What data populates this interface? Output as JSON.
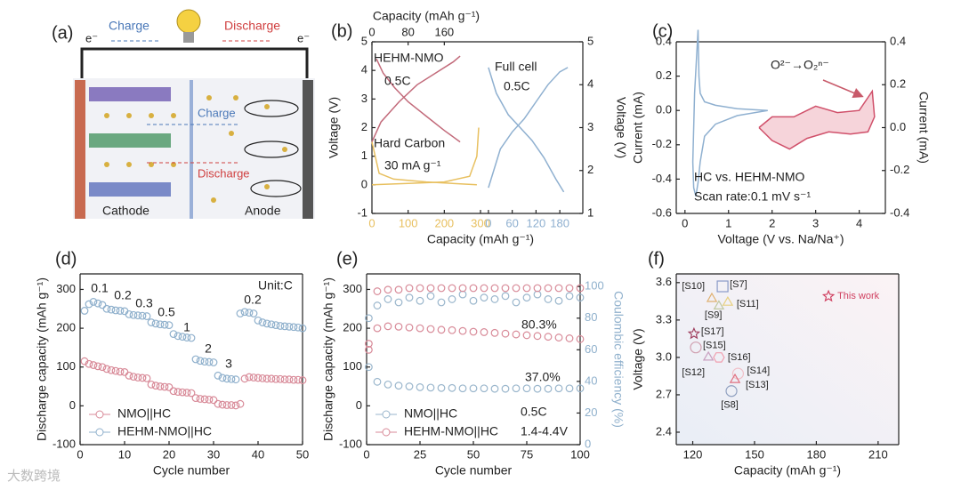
{
  "panel_a": {
    "label": "(a)",
    "electron_left": "e⁻",
    "electron_right": "e⁻",
    "charge_top": "Charge",
    "discharge_top": "Discharge",
    "charge_inner": "Charge",
    "discharge_inner": "Discharge",
    "cathode": "Cathode",
    "anode": "Anode"
  },
  "watermark": "大数跨境",
  "chart_data": [
    {
      "type": "line",
      "label": "(b)",
      "xlabel": "Capacity (mAh g⁻¹)",
      "x2label": "Capacity (mAh g⁻¹)",
      "ylabel": "Voltage (V)",
      "xlim": [
        0,
        300
      ],
      "xticks": [
        0,
        100,
        200,
        300
      ],
      "xcolor": "#e8c060",
      "x2lim": [
        0,
        240
      ],
      "x2ticks": [
        0,
        80,
        160
      ],
      "ylim": [
        -1,
        5
      ],
      "yticks": [
        -1,
        0,
        1,
        2,
        3,
        4,
        5
      ],
      "annotations": [
        "HEHM-NMO",
        "0.5C",
        "Hard Carbon",
        "30 mA g⁻¹"
      ],
      "series": [
        {
          "color": "#c26a7a",
          "axis": "x2",
          "x": [
            0,
            20,
            60,
            100,
            140,
            180,
            195
          ],
          "values": [
            1.5,
            2.2,
            2.9,
            3.5,
            3.9,
            4.3,
            4.5
          ]
        },
        {
          "color": "#c26a7a",
          "axis": "x2",
          "x": [
            10,
            25,
            50,
            80,
            120,
            160,
            195
          ],
          "values": [
            4.4,
            3.9,
            3.4,
            2.9,
            2.4,
            1.9,
            1.5
          ]
        },
        {
          "color": "#e8c060",
          "x": [
            0,
            20,
            60,
            150,
            250,
            290
          ],
          "values": [
            1.5,
            0.4,
            0.2,
            0.1,
            0.03,
            0.0
          ]
        },
        {
          "color": "#e8c060",
          "x": [
            0,
            100,
            200,
            270,
            290,
            295
          ],
          "values": [
            0.0,
            0.05,
            0.1,
            0.3,
            1.0,
            2.0
          ]
        }
      ]
    },
    {
      "type": "line",
      "y2label": "Voltage (V)",
      "xlim": [
        -20,
        238
      ],
      "xticks": [
        0,
        60,
        120,
        180
      ],
      "xcolor": "#8fb0d0",
      "y2lim": [
        1,
        5
      ],
      "y2ticks": [
        1,
        2,
        3,
        4,
        5
      ],
      "annotations": [
        "Full cell",
        "0.5C"
      ],
      "series": [
        {
          "color": "#8fb0d0",
          "axis": "y2",
          "x": [
            0,
            30,
            60,
            90,
            120,
            150,
            180,
            200
          ],
          "values": [
            1.6,
            2.5,
            2.9,
            3.2,
            3.6,
            4.0,
            4.3,
            4.4
          ]
        },
        {
          "color": "#8fb0d0",
          "axis": "y2",
          "x": [
            0,
            20,
            50,
            80,
            110,
            140,
            170,
            190
          ],
          "values": [
            4.4,
            3.8,
            3.3,
            3.0,
            2.7,
            2.3,
            1.8,
            1.5
          ]
        }
      ]
    },
    {
      "type": "line",
      "label": "(c)",
      "xlabel": "Voltage (V vs. Na/Na⁺)",
      "ylabel": "Current (mA)",
      "y2label": "Current (mA)",
      "xlim": [
        -0.2,
        4.6
      ],
      "xticks": [
        0,
        1,
        2,
        3,
        4
      ],
      "ylim": [
        -0.6,
        0.4
      ],
      "yticks": [
        -0.6,
        -0.4,
        -0.2,
        {
          "value": 0,
          "label": "0.0"
        },
        0.2,
        0.4
      ],
      "y2lim": [
        -0.4,
        0.4
      ],
      "y2ticks": [
        -0.4,
        -0.2,
        {
          "value": 0,
          "label": "0.0"
        },
        0.2,
        0.4
      ],
      "annotations": [
        "O²⁻→O₂ⁿ⁻",
        "HC vs. HEHM-NMO",
        "Scan rate:0.1 mV s⁻¹"
      ],
      "series": [
        {
          "color": "#8fb0d0",
          "x": [
            0.3,
            0.32,
            0.35,
            0.45,
            0.7,
            1.2,
            1.9,
            1.9,
            1.2,
            0.7,
            0.45,
            0.35,
            0.3,
            0.25,
            0.2,
            0.18,
            0.22,
            0.3
          ],
          "values": [
            0.47,
            0.2,
            0.1,
            0.05,
            0.03,
            0.01,
            0.0,
            0.0,
            -0.03,
            -0.08,
            -0.15,
            -0.3,
            -0.42,
            -0.5,
            -0.45,
            -0.3,
            0.1,
            0.47
          ]
        },
        {
          "color": "#d0506a",
          "fill": "#f6d4da",
          "axis": "y2",
          "x": [
            1.7,
            2.0,
            2.5,
            3.0,
            3.5,
            4.0,
            4.3,
            4.35,
            4.2,
            3.8,
            3.3,
            2.8,
            2.4,
            2.0,
            1.7
          ],
          "values": [
            0.0,
            0.05,
            0.05,
            0.1,
            0.07,
            0.08,
            0.17,
            0.05,
            -0.02,
            -0.03,
            -0.02,
            -0.05,
            -0.1,
            -0.06,
            0.0
          ]
        }
      ]
    },
    {
      "type": "scatter",
      "label": "(d)",
      "xlabel": "Cycle number",
      "ylabel": "Discharge capacity (mAh g⁻¹)",
      "xlim": [
        0,
        50
      ],
      "xticks": [
        0,
        10,
        20,
        30,
        40,
        50
      ],
      "ylim": [
        -100,
        340
      ],
      "yticks": [
        -100,
        0,
        100,
        200,
        300
      ],
      "legend": "lower left",
      "annotations": [
        "Unit:C",
        "0.1",
        "0.2",
        "0.3",
        "0.5",
        "1",
        "2",
        "3",
        "0.2"
      ],
      "series": [
        {
          "name": "NMO||HC",
          "color": "#d88a98",
          "x": [
            1,
            2,
            3,
            4,
            5,
            6,
            7,
            8,
            9,
            10,
            11,
            12,
            13,
            14,
            15,
            16,
            17,
            18,
            19,
            20,
            21,
            22,
            23,
            24,
            25,
            26,
            27,
            28,
            29,
            30,
            31,
            32,
            33,
            34,
            35,
            36,
            37,
            38,
            39,
            40,
            41,
            42,
            43,
            44,
            45,
            46,
            47,
            48,
            49,
            50
          ],
          "values": [
            115,
            108,
            105,
            102,
            100,
            95,
            92,
            90,
            88,
            87,
            78,
            75,
            73,
            72,
            71,
            55,
            52,
            50,
            49,
            48,
            38,
            36,
            35,
            34,
            33,
            20,
            18,
            17,
            16,
            15,
            5,
            3,
            2,
            2,
            1,
            5,
            70,
            74,
            73,
            72,
            71,
            70,
            70,
            69,
            69,
            68,
            68,
            67,
            67,
            66
          ]
        },
        {
          "name": "HEHM-NMO||HC",
          "color": "#8fb0cc",
          "x": [
            1,
            2,
            3,
            4,
            5,
            6,
            7,
            8,
            9,
            10,
            11,
            12,
            13,
            14,
            15,
            16,
            17,
            18,
            19,
            20,
            21,
            22,
            23,
            24,
            25,
            26,
            27,
            28,
            29,
            30,
            31,
            32,
            33,
            34,
            35,
            36,
            37,
            38,
            39,
            40,
            41,
            42,
            43,
            44,
            45,
            46,
            47,
            48,
            49,
            50
          ],
          "values": [
            245,
            262,
            268,
            264,
            260,
            250,
            248,
            246,
            245,
            244,
            236,
            234,
            233,
            232,
            231,
            215,
            212,
            210,
            209,
            208,
            185,
            180,
            178,
            176,
            175,
            120,
            116,
            114,
            113,
            112,
            78,
            72,
            70,
            69,
            68,
            238,
            242,
            240,
            238,
            220,
            215,
            212,
            210,
            208,
            206,
            205,
            204,
            203,
            202,
            200
          ]
        }
      ]
    },
    {
      "type": "scatter",
      "label": "(e)",
      "xlabel": "Cycle number",
      "ylabel": "Discharge capacity (mAh g⁻¹)",
      "y2label": "Coulombic efficiency (%)",
      "xlim": [
        0,
        100
      ],
      "xticks": [
        0,
        25,
        50,
        75,
        100
      ],
      "ylim": [
        -100,
        340
      ],
      "yticks": [
        -100,
        0,
        100,
        200,
        300
      ],
      "y2lim": [
        0,
        108
      ],
      "y2ticks": [
        0,
        20,
        40,
        60,
        80,
        100
      ],
      "y2color": "#8fb0cc",
      "legend": "lower left",
      "annotations": [
        "80.3%",
        "37.0%",
        "0.5C",
        "1.4-4.4V"
      ],
      "series": [
        {
          "name": "NMO||HC",
          "color": "#9ab6cc",
          "x": [
            1,
            5,
            10,
            15,
            20,
            25,
            30,
            35,
            40,
            45,
            50,
            55,
            60,
            65,
            70,
            75,
            80,
            85,
            90,
            95,
            100
          ],
          "values": [
            100,
            62,
            55,
            52,
            50,
            48,
            47,
            46,
            46,
            45,
            45,
            45,
            44,
            44,
            45,
            45,
            44,
            44,
            45,
            45,
            45
          ]
        },
        {
          "name": "HEHM-NMO||HC",
          "color": "#d88a98",
          "x": [
            1,
            5,
            10,
            15,
            20,
            25,
            30,
            35,
            40,
            45,
            50,
            55,
            60,
            65,
            70,
            75,
            80,
            85,
            90,
            95,
            100
          ],
          "values": [
            160,
            200,
            205,
            204,
            202,
            200,
            198,
            196,
            195,
            193,
            191,
            190,
            188,
            186,
            184,
            182,
            180,
            178,
            176,
            174,
            172
          ]
        },
        {
          "color": "#9ab6cc",
          "axis": "y2",
          "x": [
            1,
            5,
            10,
            15,
            20,
            25,
            30,
            35,
            40,
            45,
            50,
            55,
            60,
            65,
            70,
            75,
            80,
            85,
            90,
            95,
            100
          ],
          "values": [
            80,
            88,
            92,
            90,
            93,
            91,
            94,
            90,
            92,
            95,
            91,
            93,
            92,
            94,
            90,
            93,
            95,
            92,
            91,
            94,
            93
          ]
        },
        {
          "color": "#d88a98",
          "axis": "y2",
          "x": [
            1,
            5,
            10,
            15,
            20,
            25,
            30,
            35,
            40,
            45,
            50,
            55,
            60,
            65,
            70,
            75,
            80,
            85,
            90,
            95,
            100
          ],
          "values": [
            60,
            97,
            98,
            98,
            99,
            99,
            99,
            99,
            99,
            99,
            99,
            99,
            99,
            99,
            99,
            99,
            99,
            99,
            99,
            99,
            99
          ]
        }
      ]
    },
    {
      "type": "scatter",
      "label": "(f)",
      "xlabel": "Capacity (mAh g⁻¹)",
      "ylabel": "Voltage (V)",
      "xlim": [
        112,
        220
      ],
      "xticks": [
        120,
        150,
        180,
        210
      ],
      "ylim": [
        2.3,
        3.67
      ],
      "yticks": [
        2.4,
        2.7,
        {
          "value": 3,
          "label": "3.0"
        },
        3.3,
        3.6
      ],
      "series": [
        {
          "name": "[S7]",
          "color": "#8a9ac8",
          "marker": "square",
          "x": [
            134.5
          ],
          "values": [
            3.57
          ]
        },
        {
          "name": "[S10]",
          "color": "#e0b070",
          "marker": "triangle",
          "x": [
            129.3
          ],
          "values": [
            3.47
          ]
        },
        {
          "name": "[S11]",
          "color": "#e8d080",
          "marker": "triangle",
          "x": [
            137
          ],
          "values": [
            3.44
          ]
        },
        {
          "name": "[S9]",
          "color": "#c0c8a0",
          "marker": "triangle",
          "x": [
            132.7
          ],
          "values": [
            3.41
          ]
        },
        {
          "name": "[S17]",
          "color": "#a04060",
          "marker": "star",
          "x": [
            120.6
          ],
          "values": [
            3.19
          ]
        },
        {
          "name": "[S15]",
          "color": "#d0a0b0",
          "marker": "circle",
          "x": [
            121.5
          ],
          "values": [
            3.08
          ]
        },
        {
          "name": "[S16]",
          "color": "#f0a0b0",
          "marker": "hexagon",
          "x": [
            132.7
          ],
          "values": [
            3.0
          ]
        },
        {
          "name": "[S12]",
          "color": "#c8a0c0",
          "marker": "triangle",
          "x": [
            127.6
          ],
          "values": [
            3.0
          ]
        },
        {
          "name": "[S14]",
          "color": "#f0c0c8",
          "marker": "circle",
          "x": [
            142
          ],
          "values": [
            2.87
          ]
        },
        {
          "name": "[S13]",
          "color": "#e07080",
          "marker": "triangle",
          "x": [
            140.5
          ],
          "values": [
            2.82
          ]
        },
        {
          "name": "[S8]",
          "color": "#90a0c0",
          "marker": "circle",
          "x": [
            138.8
          ],
          "values": [
            2.73
          ]
        },
        {
          "name": "This work",
          "color": "#d04060",
          "marker": "star",
          "x": [
            185.9
          ],
          "values": [
            3.49
          ]
        }
      ]
    }
  ]
}
